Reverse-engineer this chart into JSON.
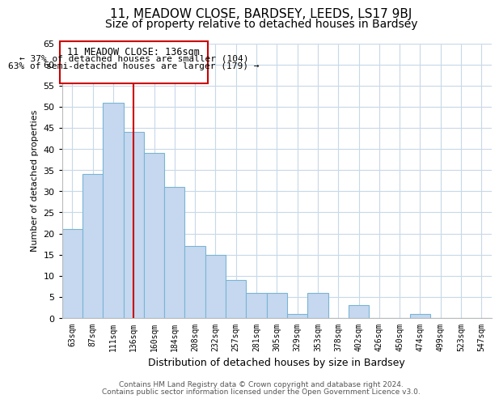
{
  "title": "11, MEADOW CLOSE, BARDSEY, LEEDS, LS17 9BJ",
  "subtitle": "Size of property relative to detached houses in Bardsey",
  "xlabel": "Distribution of detached houses by size in Bardsey",
  "ylabel": "Number of detached properties",
  "bar_labels": [
    "63sqm",
    "87sqm",
    "111sqm",
    "136sqm",
    "160sqm",
    "184sqm",
    "208sqm",
    "232sqm",
    "257sqm",
    "281sqm",
    "305sqm",
    "329sqm",
    "353sqm",
    "378sqm",
    "402sqm",
    "426sqm",
    "450sqm",
    "474sqm",
    "499sqm",
    "523sqm",
    "547sqm"
  ],
  "bar_values": [
    21,
    34,
    51,
    44,
    39,
    31,
    17,
    15,
    9,
    6,
    6,
    1,
    6,
    0,
    3,
    0,
    0,
    1,
    0,
    0,
    0
  ],
  "bar_color": "#c5d8f0",
  "bar_edge_color": "#7ab4d4",
  "highlight_index": 3,
  "highlight_line_color": "#cc0000",
  "ylim": [
    0,
    65
  ],
  "yticks": [
    0,
    5,
    10,
    15,
    20,
    25,
    30,
    35,
    40,
    45,
    50,
    55,
    60,
    65
  ],
  "annotation_title": "11 MEADOW CLOSE: 136sqm",
  "annotation_line1": "← 37% of detached houses are smaller (104)",
  "annotation_line2": "63% of semi-detached houses are larger (179) →",
  "annotation_box_color": "#ffffff",
  "annotation_box_edge": "#cc0000",
  "footnote1": "Contains HM Land Registry data © Crown copyright and database right 2024.",
  "footnote2": "Contains public sector information licensed under the Open Government Licence v3.0.",
  "background_color": "#ffffff",
  "grid_color": "#c8d8e8",
  "title_fontsize": 11,
  "subtitle_fontsize": 10
}
